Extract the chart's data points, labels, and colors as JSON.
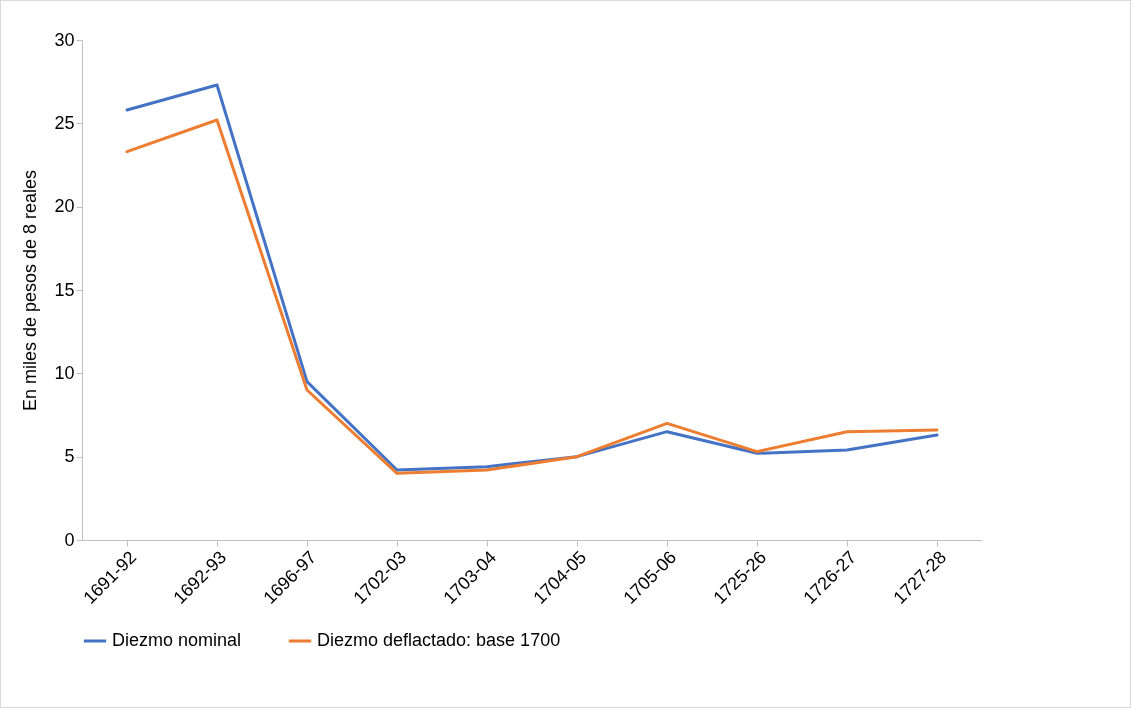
{
  "chart_data": {
    "type": "line",
    "ylabel": "En miles de pesos de 8 reales",
    "categories": [
      "1691-92",
      "1692-93",
      "1696-97",
      "1702-03",
      "1703-04",
      "1704-05",
      "1705-06",
      "1725-26",
      "1726-27",
      "1727-28"
    ],
    "series": [
      {
        "name": "Diezmo nominal",
        "color": "#4472c4",
        "values": [
          25.8,
          27.3,
          9.5,
          4.2,
          4.4,
          5.0,
          6.5,
          5.2,
          5.4,
          6.3
        ]
      },
      {
        "name": "Diezmo deflactado: base 1700",
        "color": "#ed7d31",
        "values": [
          23.3,
          25.2,
          9.0,
          4.0,
          4.2,
          5.0,
          7.0,
          5.3,
          6.5,
          6.6
        ]
      }
    ],
    "ylim": [
      0,
      30
    ],
    "yticks": [
      0,
      5,
      10,
      15,
      20,
      25,
      30
    ],
    "grid": false,
    "legend": "bottom",
    "marker": "none",
    "line_style": "solid"
  }
}
